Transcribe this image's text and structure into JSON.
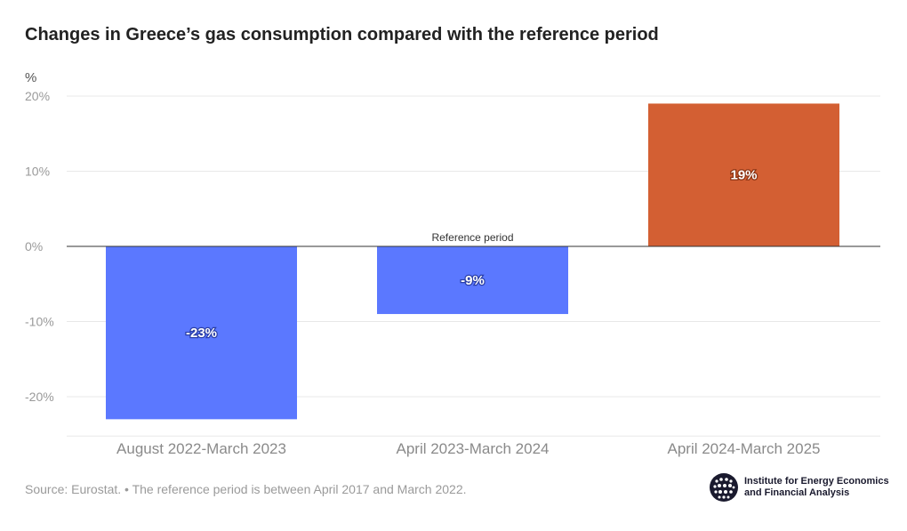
{
  "title": "Changes in Greece’s gas consumption compared with the reference period",
  "chart_data": {
    "type": "bar",
    "title": "Changes in Greece’s gas consumption compared with the reference period",
    "ylabel": "%",
    "xlabel": "",
    "categories": [
      "August 2022-March 2023",
      "April 2023-March 2024",
      "April 2024-March 2025"
    ],
    "values": [
      -23,
      -9,
      19
    ],
    "data_labels": [
      "-23%",
      "-9%",
      "19%"
    ],
    "ylim": [
      -25,
      20
    ],
    "yticks": [
      20,
      10,
      0,
      -10,
      -20
    ],
    "ytick_labels": [
      "20%",
      "10%",
      "0%",
      "-10%",
      "-20%"
    ],
    "grid": true,
    "colors": {
      "negative": "#5b78ff",
      "positive": "#d35f33",
      "zero_line": "#333333",
      "grid": "#e8e8e8"
    },
    "annotations": [
      {
        "text": "Reference period",
        "x": "April 2023-March 2024",
        "y": 0
      }
    ]
  },
  "footer": {
    "source": "Source: Eurostat. • The reference period is between April 2017 and March 2022."
  },
  "logo": {
    "icon": "globe-icon",
    "line1": "Institute for Energy Economics",
    "line2": "and Financial Analysis"
  }
}
